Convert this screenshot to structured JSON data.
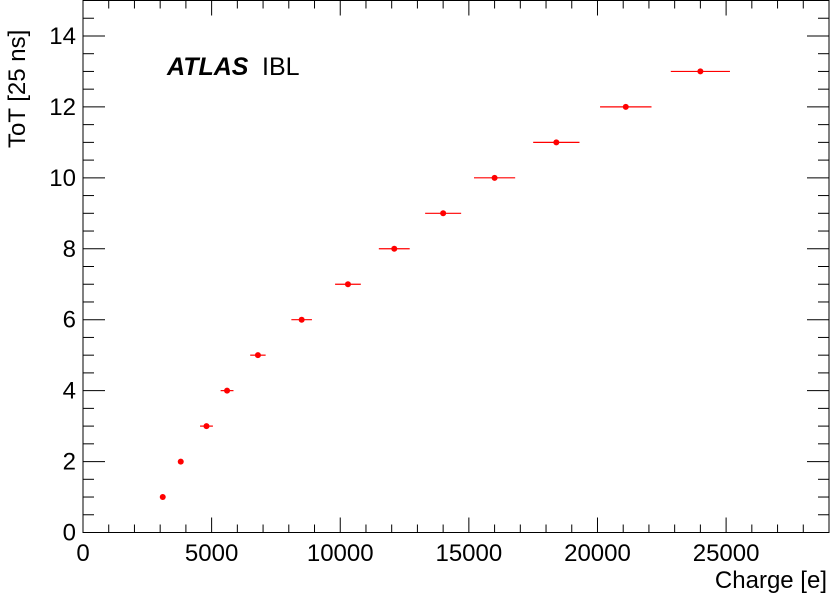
{
  "chart_data": {
    "type": "scatter",
    "xlabel": "Charge [e]",
    "ylabel": "ToT [25 ns]",
    "xlim": [
      0,
      29000
    ],
    "ylim": [
      0,
      15
    ],
    "x_major_ticks": [
      0,
      5000,
      10000,
      15000,
      20000,
      25000
    ],
    "y_major_ticks": [
      0,
      2,
      4,
      6,
      8,
      10,
      12,
      14
    ],
    "annotation": {
      "bold_italic": "ATLAS",
      "normal": "IBL"
    },
    "marker_color": "#ff0000",
    "points": [
      {
        "x": 3100,
        "y": 1,
        "xerr": 0
      },
      {
        "x": 3800,
        "y": 2,
        "xerr": 0
      },
      {
        "x": 4800,
        "y": 3,
        "xerr": 250
      },
      {
        "x": 5600,
        "y": 4,
        "xerr": 250
      },
      {
        "x": 6800,
        "y": 5,
        "xerr": 300
      },
      {
        "x": 8500,
        "y": 6,
        "xerr": 400
      },
      {
        "x": 10300,
        "y": 7,
        "xerr": 500
      },
      {
        "x": 12100,
        "y": 8,
        "xerr": 600
      },
      {
        "x": 14000,
        "y": 9,
        "xerr": 700
      },
      {
        "x": 16000,
        "y": 10,
        "xerr": 800
      },
      {
        "x": 18400,
        "y": 11,
        "xerr": 900
      },
      {
        "x": 21100,
        "y": 12,
        "xerr": 1000
      },
      {
        "x": 24000,
        "y": 13,
        "xerr": 1150
      }
    ]
  }
}
